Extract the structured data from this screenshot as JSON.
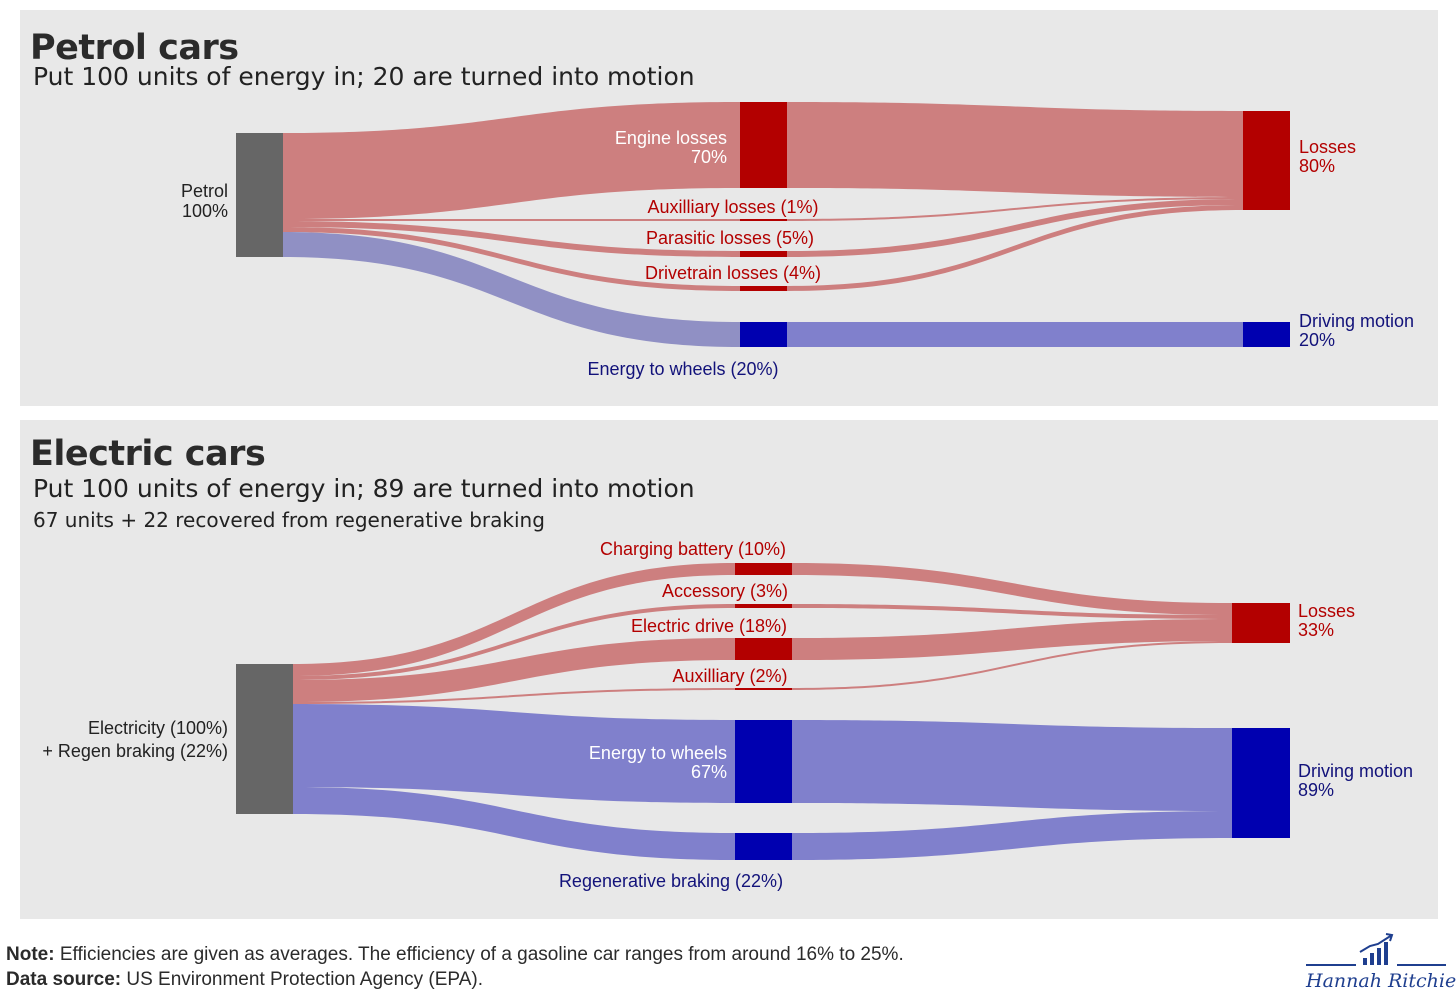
{
  "colors": {
    "panel_bg": "#e8e8e8",
    "source_node": "#666666",
    "loss_node": "#b30000",
    "loss_flow": "#cd7f7f",
    "motion_node": "#0000b0",
    "motion_flow": "#8080cc",
    "petrol_wheel_flow": "#9090c4",
    "loss_text": "#b30000",
    "motion_text": "#12127a",
    "dark_text": "#222222"
  },
  "petrol": {
    "title": "Petrol cars",
    "subtitle": "Put 100 units of energy in; 20 are turned into motion",
    "source": {
      "name": "Petrol",
      "pct": "100%",
      "value": 100
    },
    "intermediates": [
      {
        "label": "Engine losses",
        "pct": "70%",
        "value": 70,
        "type": "loss"
      },
      {
        "label": "Auxilliary losses (1%)",
        "value": 1,
        "type": "loss"
      },
      {
        "label": "Parasitic losses (5%)",
        "value": 5,
        "type": "loss"
      },
      {
        "label": "Drivetrain losses (4%)",
        "value": 4,
        "type": "loss"
      },
      {
        "label": "Energy to wheels (20%)",
        "value": 20,
        "type": "motion"
      }
    ],
    "outputs": [
      {
        "name": "Losses",
        "pct": "80%",
        "value": 80,
        "type": "loss"
      },
      {
        "name": "Driving motion",
        "pct": "20%",
        "value": 20,
        "type": "motion"
      }
    ]
  },
  "electric": {
    "title": "Electric cars",
    "subtitle": "Put 100 units of energy in; 89 are turned into motion",
    "subtitle2": "67 units + 22 recovered from regenerative braking",
    "source": {
      "line1": "Electricity (100%)",
      "line2": "+ Regen braking (22%)",
      "value": 122
    },
    "intermediates": [
      {
        "label": "Charging battery (10%)",
        "value": 10,
        "type": "loss"
      },
      {
        "label": "Accessory (3%)",
        "value": 3,
        "type": "loss"
      },
      {
        "label": "Electric drive (18%)",
        "value": 18,
        "type": "loss"
      },
      {
        "label": "Auxilliary (2%)",
        "value": 2,
        "type": "loss"
      },
      {
        "label": "Energy to wheels",
        "pct": "67%",
        "value": 67,
        "type": "motion"
      },
      {
        "label": "Regenerative braking (22%)",
        "value": 22,
        "type": "motion"
      }
    ],
    "outputs": [
      {
        "name": "Losses",
        "pct": "33%",
        "value": 33,
        "type": "loss"
      },
      {
        "name": "Driving motion",
        "pct": "89%",
        "value": 89,
        "type": "motion"
      }
    ]
  },
  "footer": {
    "note_label": "Note:",
    "note_text": " Efficiencies are given as averages. The efficiency of a gasoline car ranges from around 16% to 25%.",
    "source_label": "Data source:",
    "source_text": " US Environment Protection Agency (EPA).",
    "author": "Hannah Ritchie",
    "logo_icon": "bar-chart-trend-icon"
  }
}
